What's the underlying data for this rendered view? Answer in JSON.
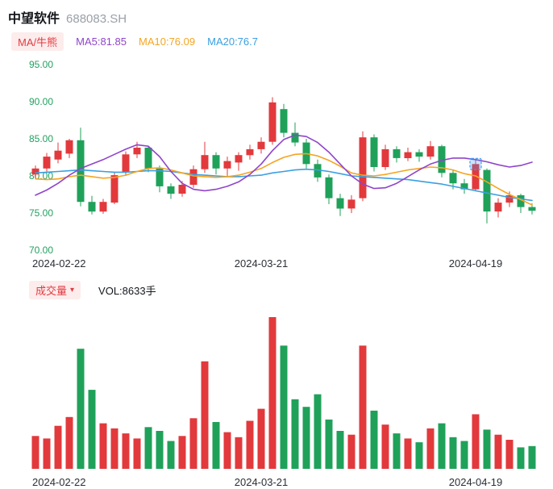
{
  "header": {
    "stock_name": "中望软件",
    "stock_code": "688083.SH"
  },
  "legend": {
    "badge": "MA/牛熊",
    "ma5": "MA5:81.85",
    "ma10": "MA10:76.09",
    "ma20": "MA20:76.7"
  },
  "volume_header": {
    "badge": "成交量",
    "dropdown_icon": "▾",
    "vol_label": "VOL:8633手"
  },
  "colors": {
    "up": "#e2393c",
    "down": "#1fa15a",
    "ma5": "#8f45c9",
    "ma10": "#f5a521",
    "ma20": "#3b9fe0",
    "axis_label": "#21a15f",
    "badge_text": "#e23b41",
    "badge_bg": "#fdecec",
    "selection": "#3f9bf0"
  },
  "chart_data": {
    "type": "candlestick",
    "title": "中望软件 688083.SH 日K与成交量",
    "legend_entries": [
      "MA/牛熊",
      "MA5:81.85",
      "MA10:76.09",
      "MA20:76.7",
      "VOL:8633手"
    ],
    "y_axis": {
      "labels": [
        "95.00",
        "90.00",
        "85.00",
        "80.00",
        "75.00",
        "70.00"
      ],
      "tick_prices": [
        95,
        90,
        85,
        80,
        75,
        70
      ],
      "min": 70,
      "max": 95
    },
    "x_ticks": [
      {
        "index": 0,
        "label": "2024-02-22",
        "align": "left"
      },
      {
        "index": 20,
        "label": "2024-03-21",
        "align": "center"
      },
      {
        "index": 39,
        "label": "2024-04-19",
        "align": "center"
      }
    ],
    "selection": {
      "index": 39,
      "price": 81.6
    },
    "volume_max": 24000,
    "candles": [
      {
        "date": "2024-02-22",
        "o": 80.2,
        "h": 81.4,
        "l": 79.6,
        "c": 81.0,
        "v": 5200
      },
      {
        "date": "2024-02-23",
        "o": 81.0,
        "h": 83.1,
        "l": 80.6,
        "c": 82.6,
        "v": 4800
      },
      {
        "date": "2024-02-26",
        "o": 82.2,
        "h": 84.5,
        "l": 81.7,
        "c": 83.4,
        "v": 6800
      },
      {
        "date": "2024-02-27",
        "o": 83.0,
        "h": 85.0,
        "l": 82.4,
        "c": 84.8,
        "v": 8200
      },
      {
        "date": "2024-02-28",
        "o": 84.8,
        "h": 86.5,
        "l": 75.9,
        "c": 76.5,
        "v": 19000
      },
      {
        "date": "2024-02-29",
        "o": 76.5,
        "h": 77.3,
        "l": 74.8,
        "c": 75.2,
        "v": 12500
      },
      {
        "date": "2024-03-01",
        "o": 75.2,
        "h": 76.9,
        "l": 74.9,
        "c": 76.5,
        "v": 7200
      },
      {
        "date": "2024-03-04",
        "o": 76.4,
        "h": 80.5,
        "l": 76.2,
        "c": 80.1,
        "v": 6400
      },
      {
        "date": "2024-03-05",
        "o": 80.5,
        "h": 83.3,
        "l": 80.0,
        "c": 82.9,
        "v": 5600
      },
      {
        "date": "2024-03-06",
        "o": 82.9,
        "h": 84.6,
        "l": 82.4,
        "c": 83.8,
        "v": 4800
      },
      {
        "date": "2024-03-07",
        "o": 83.8,
        "h": 84.0,
        "l": 80.5,
        "c": 81.0,
        "v": 6600
      },
      {
        "date": "2024-03-08",
        "o": 81.0,
        "h": 81.4,
        "l": 77.8,
        "c": 78.6,
        "v": 6000
      },
      {
        "date": "2024-03-11",
        "o": 78.6,
        "h": 79.0,
        "l": 76.9,
        "c": 77.6,
        "v": 4400
      },
      {
        "date": "2024-03-12",
        "o": 77.6,
        "h": 79.3,
        "l": 77.2,
        "c": 78.8,
        "v": 5200
      },
      {
        "date": "2024-03-13",
        "o": 78.8,
        "h": 81.4,
        "l": 78.4,
        "c": 80.9,
        "v": 8000
      },
      {
        "date": "2024-03-14",
        "o": 80.9,
        "h": 84.6,
        "l": 80.4,
        "c": 82.8,
        "v": 17000
      },
      {
        "date": "2024-03-15",
        "o": 82.8,
        "h": 83.2,
        "l": 80.2,
        "c": 81.0,
        "v": 7400
      },
      {
        "date": "2024-03-18",
        "o": 81.0,
        "h": 82.6,
        "l": 80.0,
        "c": 82.0,
        "v": 5800
      },
      {
        "date": "2024-03-19",
        "o": 81.8,
        "h": 83.2,
        "l": 80.7,
        "c": 82.8,
        "v": 5000
      },
      {
        "date": "2024-03-20",
        "o": 82.8,
        "h": 84.2,
        "l": 82.2,
        "c": 83.6,
        "v": 7600
      },
      {
        "date": "2024-03-21",
        "o": 83.6,
        "h": 85.2,
        "l": 83.0,
        "c": 84.6,
        "v": 9500
      },
      {
        "date": "2024-03-22",
        "o": 84.6,
        "h": 90.6,
        "l": 84.2,
        "c": 89.9,
        "v": 24000
      },
      {
        "date": "2024-03-25",
        "o": 89.0,
        "h": 89.7,
        "l": 85.2,
        "c": 85.8,
        "v": 19500
      },
      {
        "date": "2024-03-26",
        "o": 85.8,
        "h": 87.2,
        "l": 84.0,
        "c": 84.5,
        "v": 11000
      },
      {
        "date": "2024-03-27",
        "o": 84.5,
        "h": 85.0,
        "l": 81.0,
        "c": 81.6,
        "v": 9800
      },
      {
        "date": "2024-03-28",
        "o": 81.6,
        "h": 82.2,
        "l": 79.2,
        "c": 79.8,
        "v": 11800
      },
      {
        "date": "2024-03-29",
        "o": 79.8,
        "h": 80.2,
        "l": 76.2,
        "c": 77.0,
        "v": 7800
      },
      {
        "date": "2024-04-01",
        "o": 77.0,
        "h": 77.6,
        "l": 74.6,
        "c": 75.6,
        "v": 6000
      },
      {
        "date": "2024-04-02",
        "o": 75.6,
        "h": 77.4,
        "l": 75.0,
        "c": 76.8,
        "v": 5400
      },
      {
        "date": "2024-04-03",
        "o": 77.0,
        "h": 86.0,
        "l": 76.6,
        "c": 85.2,
        "v": 19500
      },
      {
        "date": "2024-04-08",
        "o": 85.2,
        "h": 85.6,
        "l": 80.6,
        "c": 81.2,
        "v": 9200
      },
      {
        "date": "2024-04-09",
        "o": 81.2,
        "h": 84.2,
        "l": 80.8,
        "c": 83.6,
        "v": 7000
      },
      {
        "date": "2024-04-10",
        "o": 83.6,
        "h": 84.0,
        "l": 81.8,
        "c": 82.4,
        "v": 5600
      },
      {
        "date": "2024-04-11",
        "o": 82.4,
        "h": 83.8,
        "l": 82.0,
        "c": 83.2,
        "v": 4800
      },
      {
        "date": "2024-04-12",
        "o": 83.2,
        "h": 83.6,
        "l": 81.9,
        "c": 82.6,
        "v": 4200
      },
      {
        "date": "2024-04-15",
        "o": 82.6,
        "h": 84.7,
        "l": 82.2,
        "c": 84.0,
        "v": 6400
      },
      {
        "date": "2024-04-16",
        "o": 84.0,
        "h": 84.2,
        "l": 79.8,
        "c": 80.4,
        "v": 7200
      },
      {
        "date": "2024-04-17",
        "o": 80.4,
        "h": 80.8,
        "l": 78.2,
        "c": 79.0,
        "v": 5000
      },
      {
        "date": "2024-04-18",
        "o": 79.0,
        "h": 79.6,
        "l": 77.6,
        "c": 78.2,
        "v": 4400
      },
      {
        "date": "2024-04-19",
        "o": 78.2,
        "h": 82.2,
        "l": 77.9,
        "c": 81.6,
        "v": 8633
      },
      {
        "date": "2024-04-22",
        "o": 80.8,
        "h": 81.0,
        "l": 73.6,
        "c": 75.2,
        "v": 6200
      },
      {
        "date": "2024-04-23",
        "o": 75.2,
        "h": 77.0,
        "l": 74.4,
        "c": 76.4,
        "v": 5400
      },
      {
        "date": "2024-04-24",
        "o": 76.4,
        "h": 77.9,
        "l": 75.8,
        "c": 77.4,
        "v": 4600
      },
      {
        "date": "2024-04-25",
        "o": 77.4,
        "h": 77.6,
        "l": 75.0,
        "c": 75.8,
        "v": 3400
      },
      {
        "date": "2024-04-26",
        "o": 75.8,
        "h": 76.3,
        "l": 74.8,
        "c": 75.3,
        "v": 3600
      }
    ],
    "lines": {
      "ma5": [
        77.4,
        78.1,
        79.0,
        80.1,
        81.0,
        81.6,
        82.2,
        82.9,
        83.6,
        84.2,
        84.0,
        82.6,
        80.6,
        79.0,
        78.2,
        78.0,
        78.2,
        78.6,
        79.2,
        80.2,
        81.6,
        83.4,
        84.9,
        85.5,
        85.3,
        84.5,
        83.2,
        81.6,
        80.0,
        78.9,
        78.3,
        78.4,
        79.0,
        79.9,
        80.8,
        81.6,
        82.1,
        82.4,
        82.4,
        82.2,
        81.9,
        81.5,
        81.2,
        81.4,
        81.85
      ],
      "ma10": [
        79.6,
        79.5,
        79.6,
        79.9,
        80.1,
        79.9,
        79.7,
        79.8,
        80.1,
        80.6,
        81.0,
        81.1,
        80.8,
        80.4,
        80.0,
        79.9,
        79.8,
        79.9,
        80.1,
        80.5,
        81.0,
        81.8,
        82.5,
        82.9,
        83.0,
        82.7,
        82.1,
        81.3,
        80.4,
        80.1,
        80.0,
        80.2,
        80.5,
        80.8,
        81.0,
        81.2,
        81.1,
        80.8,
        80.3,
        80.0,
        79.2,
        78.3,
        77.5,
        76.8,
        76.09
      ],
      "ma20": [
        80.4,
        80.5,
        80.6,
        80.7,
        80.8,
        80.7,
        80.6,
        80.5,
        80.5,
        80.6,
        80.7,
        80.7,
        80.6,
        80.4,
        80.2,
        80.1,
        80.0,
        79.9,
        79.9,
        80.0,
        80.1,
        80.4,
        80.6,
        80.8,
        80.9,
        80.8,
        80.6,
        80.3,
        80.0,
        79.9,
        79.8,
        79.7,
        79.6,
        79.5,
        79.3,
        79.1,
        78.9,
        78.6,
        78.3,
        78.0,
        77.7,
        77.4,
        77.1,
        76.9,
        76.7
      ]
    }
  }
}
